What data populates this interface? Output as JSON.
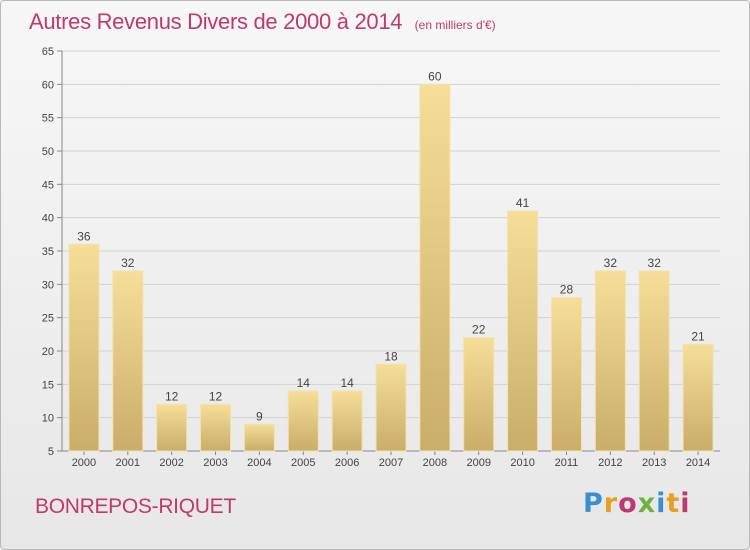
{
  "chart_data": {
    "type": "bar",
    "title": "Autres Revenus Divers de 2000 à 2014",
    "unit": "(en milliers d'€)",
    "categories": [
      "2000",
      "2001",
      "2002",
      "2003",
      "2004",
      "2005",
      "2006",
      "2007",
      "2008",
      "2009",
      "2010",
      "2011",
      "2012",
      "2013",
      "2014"
    ],
    "values": [
      36,
      32,
      12,
      12,
      9,
      14,
      14,
      18,
      60,
      22,
      41,
      28,
      32,
      32,
      21
    ],
    "ylim": [
      5,
      65
    ],
    "yticks": [
      5,
      10,
      15,
      20,
      25,
      30,
      35,
      40,
      45,
      50,
      55,
      60,
      65
    ],
    "grid": true,
    "data_labels": true,
    "bar_color": "#e8cf8a"
  },
  "footer": {
    "commune": "BONREPOS-RIQUET",
    "brand": "Proxiti",
    "brand_colors": [
      "#3a8fd0",
      "#e8a020",
      "#c0386e",
      "#6db33f",
      "#3a8fd0",
      "#e8a020",
      "#c0386e"
    ]
  },
  "colors": {
    "title": "#c0386e",
    "grid": "#d2d2d2",
    "axis_text": "#444444"
  }
}
